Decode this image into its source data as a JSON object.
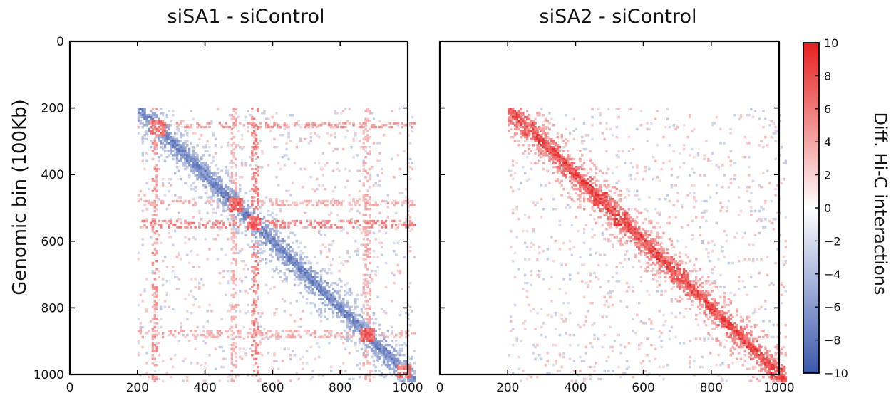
{
  "chart_data": [
    {
      "type": "heatmap",
      "title": "siSA1 - siControl",
      "ylabel": "Genomic bin (100Kb)",
      "xlim": [
        0,
        1000
      ],
      "ylim": [
        1000,
        0
      ],
      "xticks": [
        0,
        200,
        400,
        600,
        800,
        1000
      ],
      "yticks": [
        0,
        200,
        400,
        600,
        800,
        1000
      ],
      "data_extent": [
        200,
        1020
      ],
      "diagonal_value": -8,
      "tad_blocks": [
        {
          "center": 257,
          "value": 7
        },
        {
          "center": 487,
          "value": 8
        },
        {
          "center": 540,
          "value": 8
        },
        {
          "center": 880,
          "value": 8
        },
        {
          "center": 985,
          "value": 7
        }
      ],
      "stripes": [
        {
          "bin": 250,
          "value": 5
        },
        {
          "bin": 480,
          "value": 4
        },
        {
          "bin": 545,
          "value": 6
        },
        {
          "bin": 875,
          "value": 4
        }
      ]
    },
    {
      "type": "heatmap",
      "title": "siSA2 - siControl",
      "xlim": [
        0,
        1000
      ],
      "ylim": [
        1000,
        0
      ],
      "xticks": [
        0,
        200,
        400,
        600,
        800,
        1000
      ],
      "yticks": [
        0,
        200,
        400,
        600,
        800,
        1000
      ],
      "data_extent": [
        200,
        1020
      ],
      "diagonal_value": 9,
      "tad_blocks": [
        {
          "center": 260,
          "value": 8
        },
        {
          "center": 470,
          "value": 9
        },
        {
          "center": 530,
          "value": 9
        },
        {
          "center": 700,
          "value": 8
        },
        {
          "center": 990,
          "value": 9
        }
      ],
      "stripes": []
    }
  ],
  "colorbar": {
    "label": "Diff. Hi-C interactions",
    "min": -10,
    "max": 10,
    "ticks": [
      10,
      8,
      6,
      4,
      2,
      0,
      -2,
      -4,
      -6,
      -8,
      -10
    ],
    "low_color": "#3a57ac",
    "mid_color": "#ffffff",
    "high_color": "#e62020"
  }
}
